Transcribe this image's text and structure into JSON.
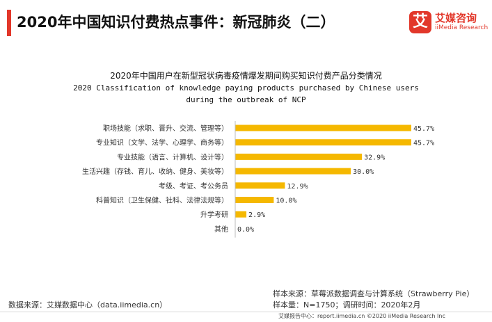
{
  "header": {
    "title": "2020年中国知识付费热点事件：新冠肺炎（二）",
    "logo_cn": "艾媒咨询",
    "logo_en": "iiMedia Research",
    "logo_mark": "艾"
  },
  "chart_data": {
    "type": "bar",
    "orientation": "horizontal",
    "title_lines": [
      "2020年中国用户在新型冠状病毒疫情爆发期间购买知识付费产品分类情况",
      "2020 Classification of knowledge paying products purchased by Chinese users",
      "during the outbreak of NCP"
    ],
    "categories": [
      "职场技能（求职、晋升、交流、管理等）",
      "专业知识（文学、法学、心理学、商务等）",
      "专业技能（语言、计算机、设计等）",
      "生活兴趣（存钱、育儿、收纳、健身、美妆等）",
      "考级、考证、考公务员",
      "科普知识（卫生保健、社科、法律法规等）",
      "升学考研",
      "其他"
    ],
    "values": [
      45.7,
      45.7,
      32.9,
      30.0,
      12.9,
      10.0,
      2.9,
      0.0
    ],
    "value_labels": [
      "45.7%",
      "45.7%",
      "32.9%",
      "30.0%",
      "12.9%",
      "10.0%",
      "2.9%",
      "0.0%"
    ],
    "unit": "%",
    "bar_color": "#f5b800",
    "grid": false
  },
  "footer": {
    "source_left": "数据来源：艾媒数据中心（data.iimedia.cn）",
    "sample_source": "样本来源：草莓派数据调查与计算系统（Strawberry Pie）",
    "sample_info": "样本量：N=1750；调研时间：2020年2月",
    "bottom_text": "艾媒报告中心：report.iimedia.cn  ©2020   iiMedia Research  Inc"
  },
  "colors": {
    "accent": "#e2372a",
    "bar": "#f5b800"
  }
}
